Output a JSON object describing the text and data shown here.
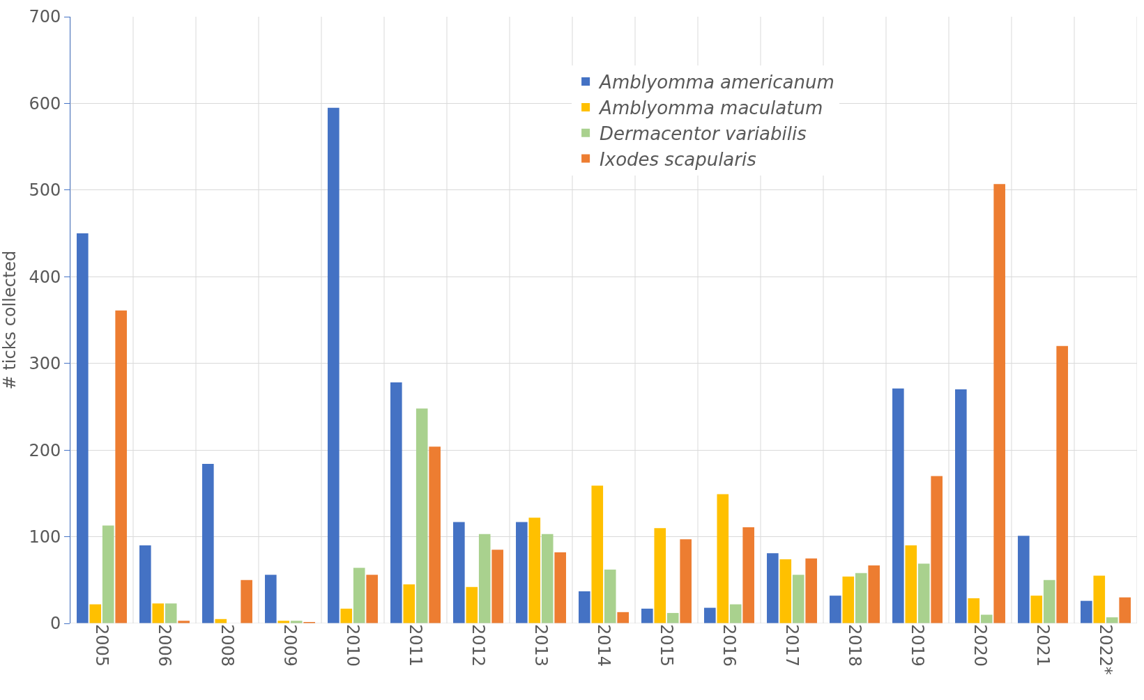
{
  "chart_data": {
    "type": "bar",
    "ylabel": "# ticks collected",
    "categories": [
      "2005",
      "2006",
      "2008",
      "2009",
      "2010",
      "2011",
      "2012",
      "2013",
      "2014",
      "2015",
      "2016",
      "2017",
      "2018",
      "2019",
      "2020",
      "2021",
      "2022*"
    ],
    "series": [
      {
        "name": "Amblyomma americanum",
        "color": "#4472c4",
        "values": [
          450,
          90,
          184,
          56,
          595,
          278,
          117,
          117,
          37,
          17,
          18,
          81,
          32,
          271,
          270,
          101,
          26
        ]
      },
      {
        "name": "Amblyomma maculatum",
        "color": "#ffc000",
        "values": [
          22,
          23,
          5,
          3,
          17,
          45,
          42,
          122,
          159,
          110,
          149,
          74,
          54,
          90,
          29,
          32,
          55
        ]
      },
      {
        "name": "Dermacentor variabilis",
        "color": "#a9d18e",
        "values": [
          113,
          23,
          0,
          3,
          64,
          248,
          103,
          103,
          62,
          12,
          22,
          56,
          58,
          69,
          10,
          50,
          7
        ]
      },
      {
        "name": "Ixodes scapularis",
        "color": "#ed7d31",
        "values": [
          361,
          3,
          50,
          1,
          56,
          204,
          85,
          82,
          13,
          97,
          111,
          75,
          67,
          170,
          507,
          320,
          30
        ]
      }
    ],
    "ylim": [
      0,
      700
    ],
    "yticks": [
      0,
      100,
      200,
      300,
      400,
      500,
      600,
      700
    ],
    "grid": true,
    "legend": "top right"
  }
}
